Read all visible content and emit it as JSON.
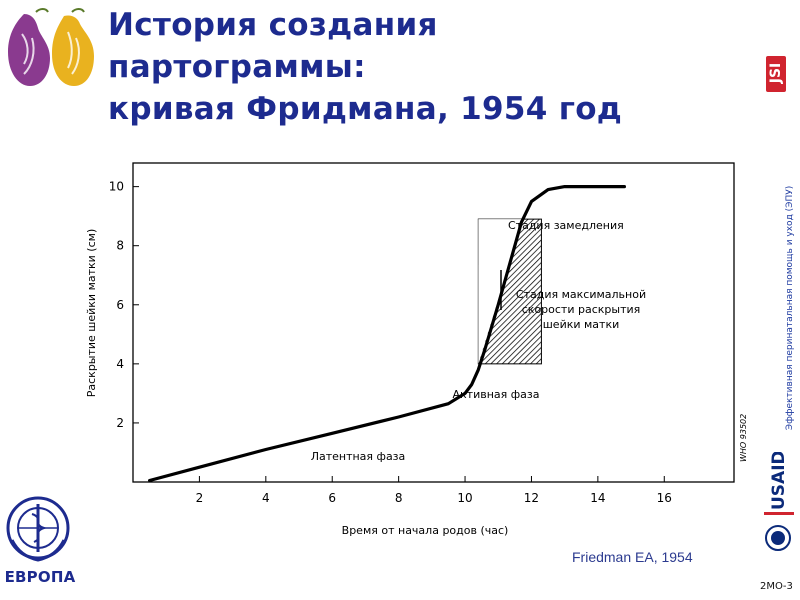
{
  "slide": {
    "title_lines": [
      "История создания",
      "партограммы:",
      "кривая Фридмана, 1954 год"
    ],
    "side_text": "Эффективная перинатальная помощь и уход (ЭПУ)",
    "citation": "Friedman EA, 1954",
    "slide_code": "2МО-3",
    "who_label": "ЕВРОПА",
    "jsi_logo_text": "JSI",
    "usaid_logo_text": "USAID",
    "colors": {
      "title": "#1d2b8f",
      "jsi": "#d0242f",
      "usaid": "#0b2a7a",
      "side_text": "#1d3aa0"
    }
  },
  "chart_data": {
    "type": "line",
    "xlabel": "Время от начала родов (час)",
    "ylabel": "Раскрытие шейки матки (см)",
    "xlim": [
      0,
      18.1
    ],
    "ylim": [
      0,
      10.8
    ],
    "x_ticks": [
      2,
      4,
      6,
      8,
      10,
      12,
      14,
      16
    ],
    "y_ticks": [
      2,
      4,
      6,
      8,
      10
    ],
    "series": [
      {
        "x": [
          0.5,
          2,
          4,
          6,
          8,
          9.5,
          10.0,
          10.2,
          10.4,
          10.6,
          11.0,
          11.4,
          11.7,
          12.0,
          12.5,
          13.0,
          14.0,
          14.8
        ],
        "y": [
          0.05,
          0.5,
          1.1,
          1.65,
          2.2,
          2.65,
          3.0,
          3.3,
          3.8,
          4.5,
          6.0,
          7.6,
          8.8,
          9.5,
          9.9,
          10.0,
          10.0,
          10.0
        ]
      }
    ],
    "hatched_region": {
      "x_start": 10.4,
      "x_end": 12.3,
      "y_bottom": 4.0,
      "y_top": 8.9
    },
    "annotations": {
      "deceleration": "Стадия замедления",
      "max_slope_lines": [
        "Стадия максимальной",
        "скорости раскрытия",
        "шейки матки"
      ],
      "active_phase": "Активная фаза",
      "latent_phase": "Латентная фаза",
      "figure_code": "WHO 93502"
    },
    "grid": false
  }
}
